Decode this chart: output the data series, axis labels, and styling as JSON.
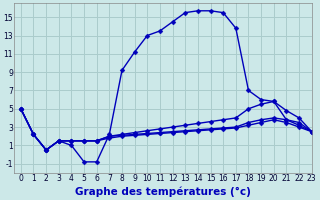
{
  "xlabel": "Graphe des températures (°c)",
  "bg_color": "#cce8e8",
  "line_color": "#0000bb",
  "grid_color": "#aacccc",
  "xlim": [
    -0.5,
    23
  ],
  "ylim": [
    -2,
    16.5
  ],
  "yticks": [
    -1,
    1,
    3,
    5,
    7,
    9,
    11,
    13,
    15
  ],
  "xticks": [
    0,
    1,
    2,
    3,
    4,
    5,
    6,
    7,
    8,
    9,
    10,
    11,
    12,
    13,
    14,
    15,
    16,
    17,
    18,
    19,
    20,
    21,
    22,
    23
  ],
  "series1": [
    5.0,
    2.2,
    0.5,
    1.5,
    1.0,
    -0.8,
    -0.8,
    2.2,
    9.2,
    11.2,
    13.0,
    13.5,
    14.5,
    15.5,
    15.7,
    15.7,
    15.5,
    13.8,
    7.0,
    6.0,
    5.8,
    3.8,
    3.2,
    2.5
  ],
  "series2": [
    5.0,
    2.2,
    0.5,
    1.5,
    1.5,
    1.5,
    1.5,
    2.0,
    2.1,
    2.2,
    2.3,
    2.4,
    2.5,
    2.6,
    2.7,
    2.8,
    2.9,
    3.0,
    3.5,
    3.8,
    4.0,
    3.8,
    3.5,
    2.5
  ],
  "series3": [
    5.0,
    2.2,
    0.5,
    1.5,
    1.5,
    1.5,
    1.5,
    2.0,
    2.2,
    2.4,
    2.6,
    2.8,
    3.0,
    3.2,
    3.4,
    3.6,
    3.8,
    4.0,
    5.0,
    5.5,
    5.8,
    4.8,
    4.0,
    2.5
  ],
  "series4": [
    5.0,
    2.2,
    0.5,
    1.5,
    1.5,
    1.5,
    1.5,
    1.8,
    2.0,
    2.1,
    2.2,
    2.3,
    2.4,
    2.5,
    2.6,
    2.7,
    2.8,
    2.9,
    3.2,
    3.5,
    3.8,
    3.5,
    3.0,
    2.5
  ],
  "marker": "D",
  "markersize": 2.5,
  "linewidth": 1.0,
  "tick_fontsize": 5.5,
  "label_fontsize": 7.5,
  "fig_width": 3.2,
  "fig_height": 2.0,
  "dpi": 100
}
